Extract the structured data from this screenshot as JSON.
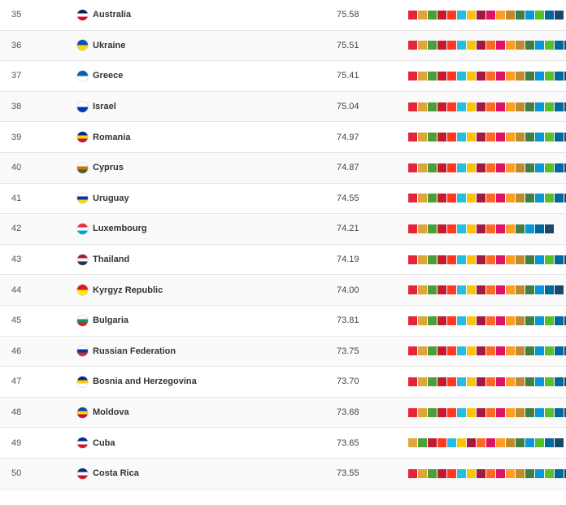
{
  "sdg_palette": [
    "#e5243b",
    "#dda63a",
    "#4c9f38",
    "#c5192d",
    "#ff3a21",
    "#26bde2",
    "#fcc30b",
    "#a21942",
    "#fd6925",
    "#dd1367",
    "#fd9d24",
    "#bf8b2e",
    "#3f7e44",
    "#0a97d9",
    "#56c02b",
    "#00689d",
    "#19486a"
  ],
  "rows": [
    {
      "rank": "35",
      "country": "Australia",
      "score": "75.58",
      "flag": "flag-australia-icon",
      "flag_colors": [
        "#012169",
        "#ffffff",
        "#e4002b"
      ],
      "goal_colors": [
        "#e5243b",
        "#dda63a",
        "#4c9f38",
        "#c5192d",
        "#ff3a21",
        "#26bde2",
        "#fcc30b",
        "#a21942",
        "#dd1367",
        "#fd9d24",
        "#bf8b2e",
        "#3f7e44",
        "#0a97d9",
        "#56c02b",
        "#00689d",
        "#19486a"
      ]
    },
    {
      "rank": "36",
      "country": "Ukraine",
      "score": "75.51",
      "flag": "flag-ukraine-icon",
      "flag_colors": [
        "#0057b7",
        "#ffd700"
      ],
      "goal_colors": [
        "#e5243b",
        "#dda63a",
        "#4c9f38",
        "#c5192d",
        "#ff3a21",
        "#26bde2",
        "#fcc30b",
        "#a21942",
        "#fd6925",
        "#dd1367",
        "#fd9d24",
        "#bf8b2e",
        "#3f7e44",
        "#0a97d9",
        "#56c02b",
        "#00689d",
        "#19486a"
      ]
    },
    {
      "rank": "37",
      "country": "Greece",
      "score": "75.41",
      "flag": "flag-greece-icon",
      "flag_colors": [
        "#0d5eaf",
        "#ffffff"
      ],
      "goal_colors": [
        "#e5243b",
        "#dda63a",
        "#4c9f38",
        "#c5192d",
        "#ff3a21",
        "#26bde2",
        "#fcc30b",
        "#a21942",
        "#fd6925",
        "#dd1367",
        "#fd9d24",
        "#bf8b2e",
        "#3f7e44",
        "#0a97d9",
        "#56c02b",
        "#00689d",
        "#19486a"
      ]
    },
    {
      "rank": "38",
      "country": "Israel",
      "score": "75.04",
      "flag": "flag-israel-icon",
      "flag_colors": [
        "#ffffff",
        "#0038b8"
      ],
      "goal_colors": [
        "#e5243b",
        "#dda63a",
        "#4c9f38",
        "#c5192d",
        "#ff3a21",
        "#26bde2",
        "#fcc30b",
        "#a21942",
        "#fd6925",
        "#dd1367",
        "#fd9d24",
        "#bf8b2e",
        "#3f7e44",
        "#0a97d9",
        "#56c02b",
        "#00689d",
        "#19486a"
      ]
    },
    {
      "rank": "39",
      "country": "Romania",
      "score": "74.97",
      "flag": "flag-romania-icon",
      "flag_colors": [
        "#002b7f",
        "#fcd116",
        "#ce1126"
      ],
      "goal_colors": [
        "#e5243b",
        "#dda63a",
        "#4c9f38",
        "#c5192d",
        "#ff3a21",
        "#26bde2",
        "#fcc30b",
        "#a21942",
        "#fd6925",
        "#dd1367",
        "#fd9d24",
        "#bf8b2e",
        "#3f7e44",
        "#0a97d9",
        "#56c02b",
        "#00689d",
        "#19486a"
      ]
    },
    {
      "rank": "40",
      "country": "Cyprus",
      "score": "74.87",
      "flag": "flag-cyprus-icon",
      "flag_colors": [
        "#ffffff",
        "#d57800",
        "#4e5b31"
      ],
      "goal_colors": [
        "#e5243b",
        "#dda63a",
        "#4c9f38",
        "#c5192d",
        "#ff3a21",
        "#26bde2",
        "#fcc30b",
        "#a21942",
        "#fd6925",
        "#dd1367",
        "#fd9d24",
        "#bf8b2e",
        "#3f7e44",
        "#0a97d9",
        "#56c02b",
        "#00689d",
        "#19486a"
      ]
    },
    {
      "rank": "41",
      "country": "Uruguay",
      "score": "74.55",
      "flag": "flag-uruguay-icon",
      "flag_colors": [
        "#ffffff",
        "#0038a8",
        "#fcd116"
      ],
      "goal_colors": [
        "#e5243b",
        "#dda63a",
        "#4c9f38",
        "#c5192d",
        "#ff3a21",
        "#26bde2",
        "#fcc30b",
        "#a21942",
        "#fd6925",
        "#dd1367",
        "#fd9d24",
        "#bf8b2e",
        "#3f7e44",
        "#0a97d9",
        "#56c02b",
        "#00689d",
        "#19486a"
      ]
    },
    {
      "rank": "42",
      "country": "Luxembourg",
      "score": "74.21",
      "flag": "flag-luxembourg-icon",
      "flag_colors": [
        "#ed2939",
        "#ffffff",
        "#00a1de"
      ],
      "goal_colors": [
        "#e5243b",
        "#dda63a",
        "#4c9f38",
        "#c5192d",
        "#ff3a21",
        "#26bde2",
        "#fcc30b",
        "#a21942",
        "#fd6925",
        "#dd1367",
        "#fd9d24",
        "#3f7e44",
        "#0a97d9",
        "#00689d",
        "#19486a"
      ]
    },
    {
      "rank": "43",
      "country": "Thailand",
      "score": "74.19",
      "flag": "flag-thailand-icon",
      "flag_colors": [
        "#a51931",
        "#f4f5f8",
        "#2d2a4a"
      ],
      "goal_colors": [
        "#e5243b",
        "#dda63a",
        "#4c9f38",
        "#c5192d",
        "#ff3a21",
        "#26bde2",
        "#fcc30b",
        "#a21942",
        "#fd6925",
        "#dd1367",
        "#fd9d24",
        "#bf8b2e",
        "#3f7e44",
        "#0a97d9",
        "#56c02b",
        "#00689d",
        "#19486a"
      ]
    },
    {
      "rank": "44",
      "country": "Kyrgyz Republic",
      "score": "74.00",
      "flag": "flag-kyrgyz-republic-icon",
      "flag_colors": [
        "#e8112d",
        "#ffef00"
      ],
      "goal_colors": [
        "#e5243b",
        "#dda63a",
        "#4c9f38",
        "#c5192d",
        "#ff3a21",
        "#26bde2",
        "#fcc30b",
        "#a21942",
        "#fd6925",
        "#dd1367",
        "#fd9d24",
        "#bf8b2e",
        "#3f7e44",
        "#0a97d9",
        "#00689d",
        "#19486a"
      ]
    },
    {
      "rank": "45",
      "country": "Bulgaria",
      "score": "73.81",
      "flag": "flag-bulgaria-icon",
      "flag_colors": [
        "#ffffff",
        "#00966e",
        "#d62612"
      ],
      "goal_colors": [
        "#e5243b",
        "#dda63a",
        "#4c9f38",
        "#c5192d",
        "#ff3a21",
        "#26bde2",
        "#fcc30b",
        "#a21942",
        "#fd6925",
        "#dd1367",
        "#fd9d24",
        "#bf8b2e",
        "#3f7e44",
        "#0a97d9",
        "#56c02b",
        "#00689d",
        "#19486a"
      ]
    },
    {
      "rank": "46",
      "country": "Russian Federation",
      "score": "73.75",
      "flag": "flag-russian-federation-icon",
      "flag_colors": [
        "#ffffff",
        "#0039a6",
        "#d52b1e"
      ],
      "goal_colors": [
        "#e5243b",
        "#dda63a",
        "#4c9f38",
        "#c5192d",
        "#ff3a21",
        "#26bde2",
        "#fcc30b",
        "#a21942",
        "#fd6925",
        "#dd1367",
        "#fd9d24",
        "#bf8b2e",
        "#3f7e44",
        "#0a97d9",
        "#56c02b",
        "#00689d",
        "#19486a"
      ]
    },
    {
      "rank": "47",
      "country": "Bosnia and Herzegovina",
      "score": "73.70",
      "flag": "flag-bosnia-and-herzegovina-icon",
      "flag_colors": [
        "#002395",
        "#fecb00",
        "#ffffff"
      ],
      "goal_colors": [
        "#e5243b",
        "#dda63a",
        "#4c9f38",
        "#c5192d",
        "#ff3a21",
        "#26bde2",
        "#fcc30b",
        "#a21942",
        "#fd6925",
        "#dd1367",
        "#fd9d24",
        "#bf8b2e",
        "#3f7e44",
        "#0a97d9",
        "#56c02b",
        "#00689d",
        "#19486a"
      ]
    },
    {
      "rank": "48",
      "country": "Moldova",
      "score": "73.68",
      "flag": "flag-moldova-icon",
      "flag_colors": [
        "#0046ae",
        "#ffd200",
        "#cc092f"
      ],
      "goal_colors": [
        "#e5243b",
        "#dda63a",
        "#4c9f38",
        "#c5192d",
        "#ff3a21",
        "#26bde2",
        "#fcc30b",
        "#a21942",
        "#fd6925",
        "#dd1367",
        "#fd9d24",
        "#bf8b2e",
        "#3f7e44",
        "#0a97d9",
        "#56c02b",
        "#00689d",
        "#19486a"
      ]
    },
    {
      "rank": "49",
      "country": "Cuba",
      "score": "73.65",
      "flag": "flag-cuba-icon",
      "flag_colors": [
        "#002a8f",
        "#ffffff",
        "#cf142b"
      ],
      "goal_colors": [
        "#dda63a",
        "#4c9f38",
        "#c5192d",
        "#ff3a21",
        "#26bde2",
        "#fcc30b",
        "#a21942",
        "#fd6925",
        "#dd1367",
        "#fd9d24",
        "#bf8b2e",
        "#3f7e44",
        "#0a97d9",
        "#56c02b",
        "#00689d",
        "#19486a"
      ]
    },
    {
      "rank": "50",
      "country": "Costa Rica",
      "score": "73.55",
      "flag": "flag-costa-rica-icon",
      "flag_colors": [
        "#002b7f",
        "#ffffff",
        "#ce1126"
      ],
      "goal_colors": [
        "#e5243b",
        "#dda63a",
        "#4c9f38",
        "#c5192d",
        "#ff3a21",
        "#26bde2",
        "#fcc30b",
        "#a21942",
        "#fd6925",
        "#dd1367",
        "#fd9d24",
        "#bf8b2e",
        "#3f7e44",
        "#0a97d9",
        "#56c02b",
        "#00689d",
        "#19486a"
      ]
    }
  ]
}
